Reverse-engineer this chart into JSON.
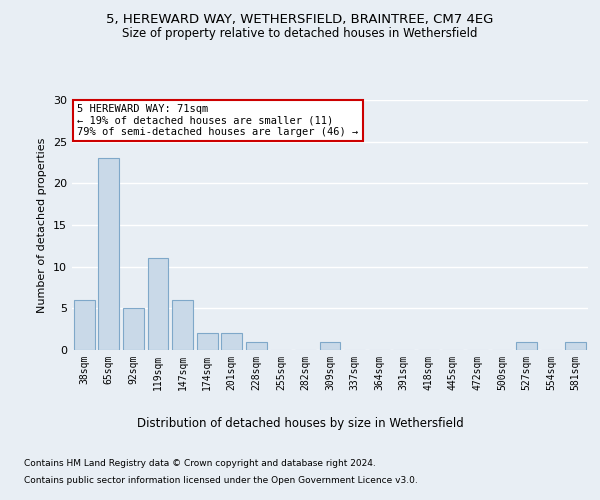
{
  "title1": "5, HEREWARD WAY, WETHERSFIELD, BRAINTREE, CM7 4EG",
  "title2": "Size of property relative to detached houses in Wethersfield",
  "xlabel": "Distribution of detached houses by size in Wethersfield",
  "ylabel": "Number of detached properties",
  "categories": [
    "38sqm",
    "65sqm",
    "92sqm",
    "119sqm",
    "147sqm",
    "174sqm",
    "201sqm",
    "228sqm",
    "255sqm",
    "282sqm",
    "309sqm",
    "337sqm",
    "364sqm",
    "391sqm",
    "418sqm",
    "445sqm",
    "472sqm",
    "500sqm",
    "527sqm",
    "554sqm",
    "581sqm"
  ],
  "values": [
    6,
    23,
    5,
    11,
    6,
    2,
    2,
    1,
    0,
    0,
    1,
    0,
    0,
    0,
    0,
    0,
    0,
    0,
    1,
    0,
    1
  ],
  "bar_color": "#c9d9e8",
  "bar_edge_color": "#7fa8c9",
  "annotation_text": "5 HEREWARD WAY: 71sqm\n← 19% of detached houses are smaller (11)\n79% of semi-detached houses are larger (46) →",
  "annotation_box_color": "#ffffff",
  "annotation_box_edge_color": "#cc0000",
  "ylim": [
    0,
    30
  ],
  "yticks": [
    0,
    5,
    10,
    15,
    20,
    25,
    30
  ],
  "footer1": "Contains HM Land Registry data © Crown copyright and database right 2024.",
  "footer2": "Contains public sector information licensed under the Open Government Licence v3.0.",
  "background_color": "#e8eef4",
  "plot_bg_color": "#e8eef4"
}
